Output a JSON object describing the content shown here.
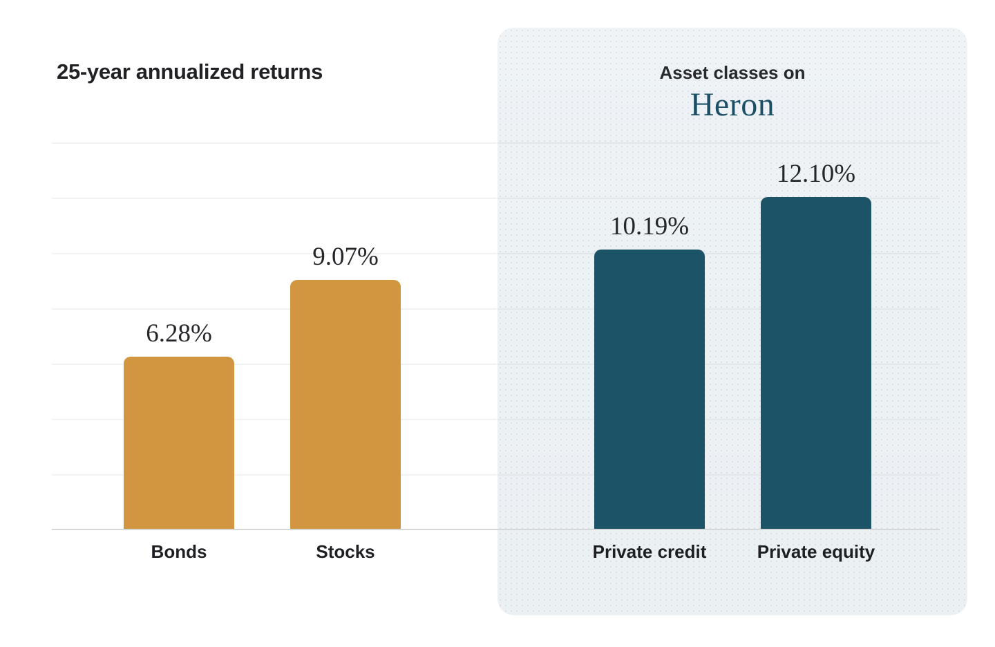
{
  "page": {
    "background": "#FFFFFF"
  },
  "left_chart": {
    "title": "25-year annualized returns",
    "bar_color": "#D29540",
    "bars": [
      {
        "label": "Bonds",
        "value": 6.28,
        "display": "6.28%"
      },
      {
        "label": "Stocks",
        "value": 9.07,
        "display": "9.07%"
      }
    ]
  },
  "right_panel": {
    "title": "Asset classes on",
    "brand": "Heron",
    "brand_color": "#1D4F66",
    "background": "#ECF1F4",
    "bar_color": "#1D5366",
    "bars": [
      {
        "label": "Private credit",
        "value": 10.19,
        "display": "10.19%"
      },
      {
        "label": "Private equity",
        "value": 12.1,
        "display": "12.10%"
      }
    ]
  },
  "colors": {
    "gold_bar": "#D29540",
    "teal_bar": "#1D5366",
    "panel_background": "#ECF1F4",
    "axis_line": "#D4D8DA",
    "gridline_left": "#F0F3F2",
    "gridline_panel": "#E2E7E9",
    "title_text": "#202124"
  },
  "chart_data": [
    {
      "type": "bar",
      "title": "25-year annualized returns",
      "categories": [
        "Bonds",
        "Stocks"
      ],
      "values": [
        6.28,
        9.07
      ],
      "data_labels": [
        "6.28%",
        "9.07%"
      ],
      "bar_color": "#D29540",
      "xlabel": "",
      "ylabel": "",
      "ylim": [
        0,
        14.2
      ],
      "grid": true,
      "legend": false
    },
    {
      "type": "bar",
      "title": "Asset classes on Heron",
      "categories": [
        "Private credit",
        "Private equity"
      ],
      "values": [
        10.19,
        12.1
      ],
      "data_labels": [
        "10.19%",
        "12.10%"
      ],
      "bar_color": "#1D5366",
      "xlabel": "",
      "ylabel": "",
      "ylim": [
        0,
        14.2
      ],
      "grid": true,
      "legend": false
    }
  ]
}
